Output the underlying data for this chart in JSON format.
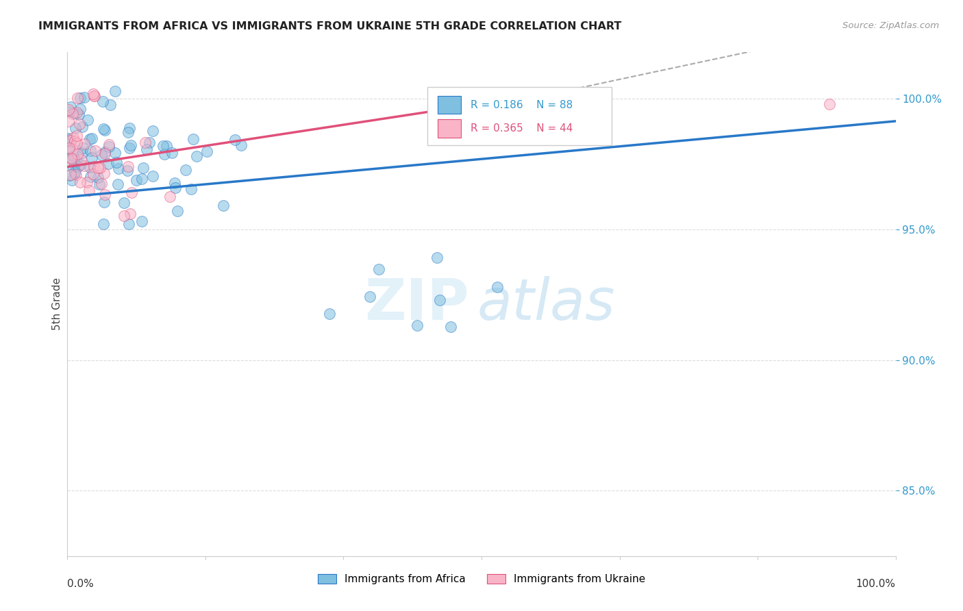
{
  "title": "IMMIGRANTS FROM AFRICA VS IMMIGRANTS FROM UKRAINE 5TH GRADE CORRELATION CHART",
  "source": "Source: ZipAtlas.com",
  "ylabel": "5th Grade",
  "ytick_labels": [
    "85.0%",
    "90.0%",
    "95.0%",
    "100.0%"
  ],
  "ytick_values": [
    0.85,
    0.9,
    0.95,
    1.0
  ],
  "xmin": 0.0,
  "xmax": 1.0,
  "ymin": 0.825,
  "ymax": 1.018,
  "legend_blue_label": "Immigrants from Africa",
  "legend_pink_label": "Immigrants from Ukraine",
  "r_blue": "0.186",
  "n_blue": "88",
  "r_pink": "0.365",
  "n_pink": "44",
  "blue_color": "#7fbfdf",
  "pink_color": "#f9b4c8",
  "blue_line_color": "#2878c8",
  "pink_line_color": "#e0507a",
  "gray_dash_color": "#aaaaaa",
  "background_color": "#ffffff",
  "grid_color": "#dddddd",
  "blue_trend": [
    0.0,
    0.9625,
    1.0,
    0.9915
  ],
  "pink_trend_solid": [
    0.0,
    0.974,
    0.6,
    1.003
  ],
  "pink_trend_dash": [
    0.6,
    1.003,
    1.0,
    1.03
  ]
}
